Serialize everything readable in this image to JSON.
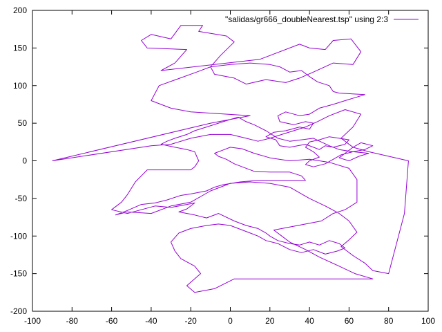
{
  "chart_data": {
    "type": "line",
    "title": "",
    "xlabel": "",
    "ylabel": "",
    "xlim": [
      -100,
      100
    ],
    "ylim": [
      -200,
      200
    ],
    "x_ticks": [
      -100,
      -80,
      -60,
      -40,
      -20,
      0,
      20,
      40,
      60,
      80,
      100
    ],
    "y_ticks": [
      -200,
      -150,
      -100,
      -50,
      0,
      50,
      100,
      150,
      200
    ],
    "grid": false,
    "legend_position": "top-right",
    "series": [
      {
        "name": "\"salidas/gr666_doubleNearest.tsp\" using 2:3",
        "color": "#9400d3",
        "points": [
          [
            -90,
            0
          ],
          [
            -10,
            50
          ],
          [
            10,
            60
          ],
          [
            -20,
            65
          ],
          [
            -30,
            70
          ],
          [
            -40,
            80
          ],
          [
            -36,
            100
          ],
          [
            -17,
            118
          ],
          [
            -10,
            125
          ],
          [
            -5,
            140
          ],
          [
            2,
            158
          ],
          [
            -2,
            166
          ],
          [
            -16,
            172
          ],
          [
            -14,
            180
          ],
          [
            -25,
            180
          ],
          [
            -30,
            162
          ],
          [
            -40,
            168
          ],
          [
            -45,
            160
          ],
          [
            -42,
            150
          ],
          [
            -22,
            148
          ],
          [
            -28,
            130
          ],
          [
            -35,
            120
          ],
          [
            15,
            135
          ],
          [
            35,
            155
          ],
          [
            40,
            150
          ],
          [
            48,
            148
          ],
          [
            52,
            160
          ],
          [
            61,
            162
          ],
          [
            66,
            145
          ],
          [
            62,
            128
          ],
          [
            52,
            130
          ],
          [
            42,
            118
          ],
          [
            35,
            110
          ],
          [
            28,
            104
          ],
          [
            18,
            108
          ],
          [
            8,
            102
          ],
          [
            2,
            110
          ],
          [
            -8,
            115
          ],
          [
            -10,
            125
          ],
          [
            0,
            128
          ],
          [
            10,
            130
          ],
          [
            20,
            128
          ],
          [
            25,
            125
          ],
          [
            30,
            118
          ],
          [
            36,
            120
          ],
          [
            40,
            112
          ],
          [
            44,
            105
          ],
          [
            50,
            100
          ],
          [
            52,
            92
          ],
          [
            55,
            90
          ],
          [
            68,
            88
          ],
          [
            58,
            80
          ],
          [
            52,
            75
          ],
          [
            45,
            70
          ],
          [
            40,
            62
          ],
          [
            35,
            60
          ],
          [
            28,
            65
          ],
          [
            24,
            60
          ],
          [
            25,
            52
          ],
          [
            32,
            48
          ],
          [
            38,
            52
          ],
          [
            42,
            50
          ],
          [
            40,
            42
          ],
          [
            35,
            45
          ],
          [
            28,
            40
          ],
          [
            22,
            38
          ],
          [
            18,
            32
          ],
          [
            23,
            28
          ],
          [
            25,
            20
          ],
          [
            30,
            18
          ],
          [
            38,
            22
          ],
          [
            42,
            18
          ],
          [
            45,
            15
          ],
          [
            48,
            20
          ],
          [
            52,
            18
          ],
          [
            58,
            22
          ],
          [
            60,
            28
          ],
          [
            55,
            30
          ],
          [
            50,
            32
          ],
          [
            45,
            28
          ],
          [
            40,
            25
          ],
          [
            38,
            18
          ],
          [
            42,
            12
          ],
          [
            45,
            5
          ],
          [
            40,
            0
          ],
          [
            38,
            -5
          ],
          [
            42,
            -8
          ],
          [
            48,
            -4
          ],
          [
            52,
            2
          ],
          [
            56,
            8
          ],
          [
            62,
            12
          ],
          [
            68,
            15
          ],
          [
            72,
            20
          ],
          [
            66,
            24
          ],
          [
            62,
            18
          ],
          [
            58,
            10
          ],
          [
            55,
            4
          ],
          [
            60,
            0
          ],
          [
            65,
            6
          ],
          [
            70,
            10
          ],
          [
            62,
            12
          ],
          [
            55,
            15
          ],
          [
            50,
            20
          ],
          [
            46,
            25
          ],
          [
            42,
            30
          ],
          [
            36,
            28
          ],
          [
            30,
            26
          ],
          [
            24,
            30
          ],
          [
            18,
            40
          ],
          [
            12,
            48
          ],
          [
            8,
            52
          ],
          [
            4,
            58
          ],
          [
            0,
            55
          ],
          [
            -6,
            50
          ],
          [
            -12,
            45
          ],
          [
            -18,
            40
          ],
          [
            -22,
            35
          ],
          [
            -28,
            30
          ],
          [
            -32,
            26
          ],
          [
            -35,
            22
          ],
          [
            -28,
            18
          ],
          [
            -22,
            15
          ],
          [
            -18,
            12
          ],
          [
            -16,
            0
          ],
          [
            -18,
            -8
          ],
          [
            -20,
            -12
          ],
          [
            -36,
            -12
          ],
          [
            -42,
            -12
          ],
          [
            -48,
            -28
          ],
          [
            -52,
            -45
          ],
          [
            -55,
            -55
          ],
          [
            -60,
            -65
          ],
          [
            -52,
            -70
          ],
          [
            -45,
            -65
          ],
          [
            -38,
            -60
          ],
          [
            -30,
            -62
          ],
          [
            -22,
            -58
          ],
          [
            -18,
            -56
          ],
          [
            -22,
            -64
          ],
          [
            -26,
            -68
          ],
          [
            -18,
            -72
          ],
          [
            -12,
            -76
          ],
          [
            -6,
            -70
          ],
          [
            2,
            -80
          ],
          [
            8,
            -86
          ],
          [
            14,
            -90
          ],
          [
            18,
            -96
          ],
          [
            20,
            -100
          ],
          [
            24,
            -106
          ],
          [
            30,
            -110
          ],
          [
            35,
            -112
          ],
          [
            40,
            -108
          ],
          [
            45,
            -112
          ],
          [
            50,
            -106
          ],
          [
            55,
            -110
          ],
          [
            58,
            -116
          ],
          [
            54,
            -120
          ],
          [
            48,
            -124
          ],
          [
            42,
            -118
          ],
          [
            36,
            -122
          ],
          [
            30,
            -118
          ],
          [
            24,
            -110
          ],
          [
            18,
            -106
          ],
          [
            14,
            -100
          ],
          [
            10,
            -96
          ],
          [
            4,
            -90
          ],
          [
            0,
            -86
          ],
          [
            -6,
            -84
          ],
          [
            -12,
            -86
          ],
          [
            -20,
            -90
          ],
          [
            -26,
            -96
          ],
          [
            -30,
            -108
          ],
          [
            -28,
            -120
          ],
          [
            -25,
            -130
          ],
          [
            -18,
            -140
          ],
          [
            -15,
            -150
          ],
          [
            -22,
            -166
          ],
          [
            -18,
            -175
          ],
          [
            -8,
            -170
          ],
          [
            2,
            -157
          ],
          [
            40,
            -157
          ],
          [
            72,
            -157
          ],
          [
            63,
            -150
          ],
          [
            55,
            -140
          ],
          [
            45,
            -128
          ],
          [
            38,
            -118
          ],
          [
            30,
            -108
          ],
          [
            26,
            -100
          ],
          [
            22,
            -92
          ],
          [
            30,
            -88
          ],
          [
            38,
            -84
          ],
          [
            46,
            -80
          ],
          [
            52,
            -70
          ],
          [
            58,
            -65
          ],
          [
            64,
            -55
          ],
          [
            64,
            -25
          ],
          [
            60,
            -10
          ],
          [
            50,
            -2
          ],
          [
            40,
            2
          ],
          [
            30,
            0
          ],
          [
            20,
            4
          ],
          [
            12,
            10
          ],
          [
            6,
            16
          ],
          [
            0,
            18
          ],
          [
            -4,
            14
          ],
          [
            -8,
            10
          ],
          [
            -6,
            6
          ],
          [
            -2,
            2
          ],
          [
            2,
            -4
          ],
          [
            6,
            -8
          ],
          [
            12,
            -14
          ],
          [
            20,
            -15
          ],
          [
            30,
            -15
          ],
          [
            36,
            -20
          ],
          [
            38,
            -26
          ],
          [
            14,
            -26
          ],
          [
            5,
            -28
          ],
          [
            -4,
            -32
          ],
          [
            -8,
            -35
          ],
          [
            -12,
            -40
          ],
          [
            -20,
            -44
          ],
          [
            -25,
            -46
          ],
          [
            -32,
            -52
          ],
          [
            -38,
            -56
          ],
          [
            -45,
            -58
          ],
          [
            -52,
            -66
          ],
          [
            -58,
            -72
          ],
          [
            -52,
            -68
          ],
          [
            -40,
            -70
          ],
          [
            -30,
            -60
          ],
          [
            -20,
            -55
          ],
          [
            -10,
            -40
          ],
          [
            0,
            -30
          ],
          [
            10,
            -28
          ],
          [
            20,
            -30
          ],
          [
            30,
            -35
          ],
          [
            40,
            -50
          ],
          [
            48,
            -60
          ],
          [
            55,
            -70
          ],
          [
            60,
            -80
          ],
          [
            64,
            -95
          ],
          [
            60,
            -105
          ],
          [
            56,
            -114
          ],
          [
            62,
            -126
          ],
          [
            68,
            -136
          ],
          [
            72,
            -146
          ],
          [
            80,
            -150
          ],
          [
            88,
            -70
          ],
          [
            90,
            0
          ],
          [
            70,
            12
          ],
          [
            62,
            18
          ],
          [
            56,
            30
          ],
          [
            62,
            45
          ],
          [
            66,
            62
          ],
          [
            58,
            68
          ],
          [
            50,
            60
          ],
          [
            44,
            52
          ],
          [
            38,
            45
          ],
          [
            32,
            40
          ],
          [
            26,
            35
          ],
          [
            20,
            30
          ],
          [
            14,
            26
          ],
          [
            8,
            30
          ],
          [
            0,
            35
          ],
          [
            -10,
            35
          ],
          [
            -20,
            30
          ],
          [
            -30,
            22
          ],
          [
            -40,
            20
          ],
          [
            -90,
            0
          ]
        ]
      }
    ]
  }
}
